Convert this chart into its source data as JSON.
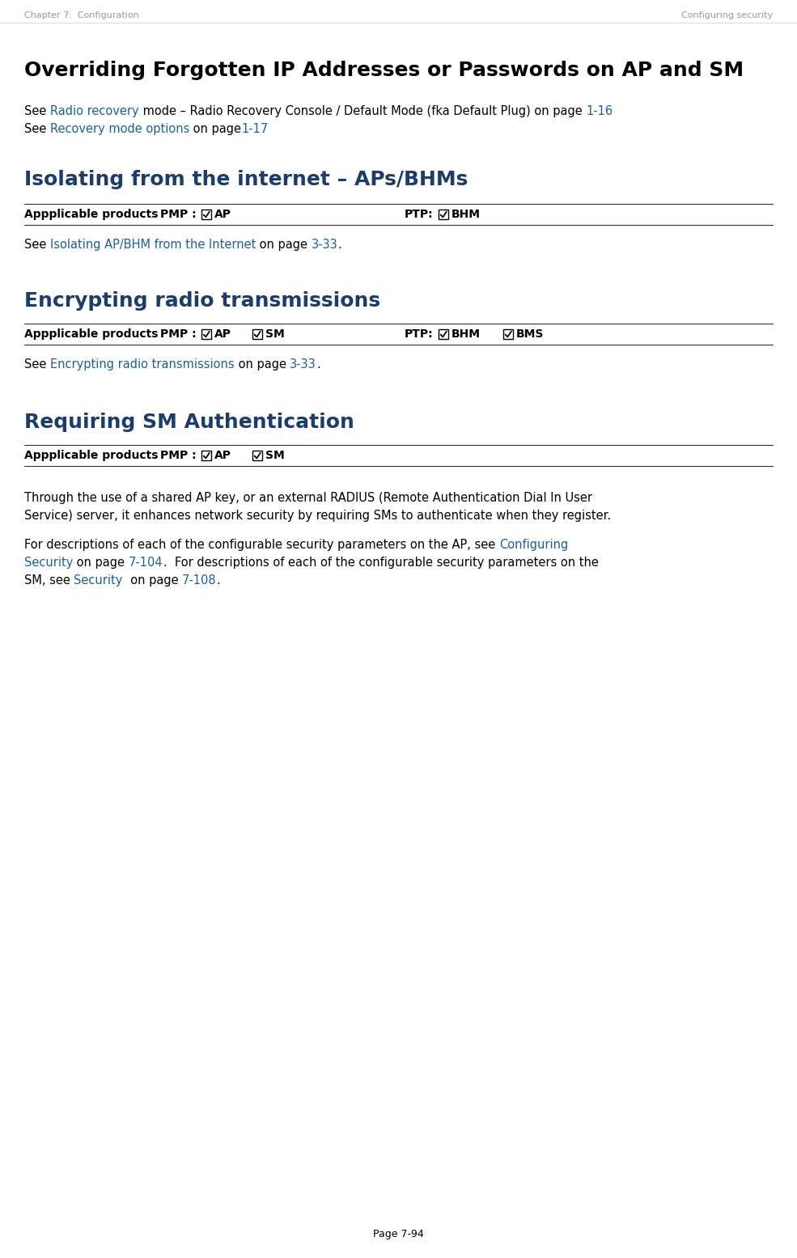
{
  "header_left": "Chapter 7:  Configuration",
  "header_right": "Configuring security",
  "header_color": "#aaaaaa",
  "footer_text": "Page 7-94",
  "bg_color": "#ffffff",
  "section1_title": "Overriding Forgotten IP Addresses or Passwords on AP and SM",
  "section2_title": "Isolating from the internet – APs/BHMs",
  "section3_title": "Encrypting radio transmissions",
  "section4_title": "Requiring SM Authentication",
  "title_color": "#000000",
  "section_title_color": "#1b3d6e",
  "link_color": "#1a5fa8",
  "text_color": "#000000",
  "line_color": "#000000",
  "header_color_val": "#999999"
}
